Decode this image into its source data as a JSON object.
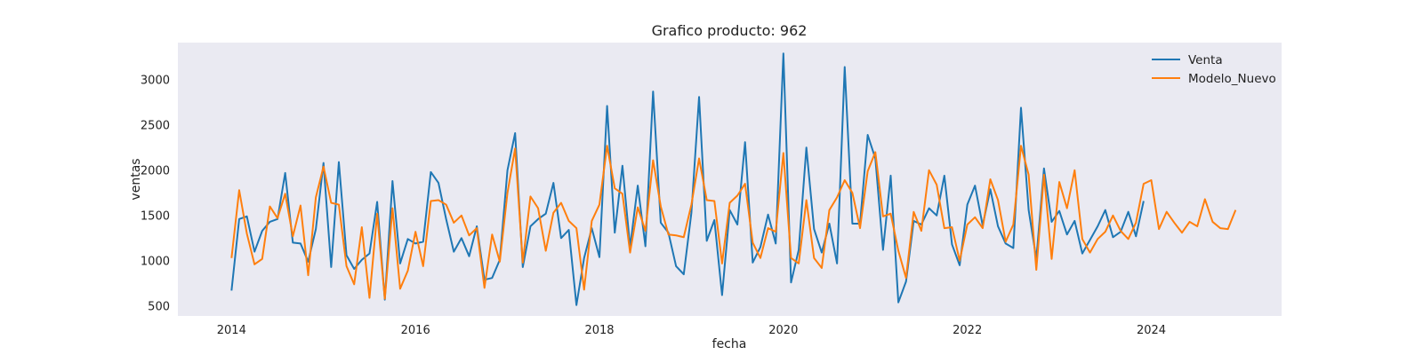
{
  "chart_data": {
    "type": "line",
    "title": "Grafico producto: 962",
    "xlabel": "fecha",
    "ylabel": "ventas",
    "x_start": "2014-01",
    "x_ticks": [
      "2014",
      "2016",
      "2018",
      "2020",
      "2022",
      "2024"
    ],
    "y_ticks": [
      500,
      1000,
      1500,
      2000,
      2500,
      3000
    ],
    "xlim": [
      "2013-06",
      "2025-06"
    ],
    "ylim": [
      390,
      3410
    ],
    "grid": false,
    "legend_position": "top-right",
    "plot_background": "#eaeaf2",
    "series": [
      {
        "name": "Venta",
        "color": "#1f77b4",
        "values": [
          670,
          1460,
          1490,
          1100,
          1330,
          1430,
          1460,
          1970,
          1200,
          1190,
          990,
          1350,
          2080,
          930,
          2090,
          1060,
          910,
          1010,
          1080,
          1650,
          570,
          1880,
          970,
          1240,
          1190,
          1210,
          1980,
          1860,
          1460,
          1100,
          1250,
          1050,
          1380,
          790,
          810,
          1010,
          2000,
          2410,
          930,
          1380,
          1460,
          1520,
          1860,
          1250,
          1340,
          510,
          1030,
          1360,
          1040,
          2710,
          1310,
          2050,
          1150,
          1830,
          1160,
          2870,
          1420,
          1310,
          940,
          850,
          1530,
          2810,
          1220,
          1450,
          620,
          1560,
          1400,
          2310,
          980,
          1150,
          1510,
          1190,
          3290,
          760,
          1120,
          2250,
          1350,
          1090,
          1410,
          970,
          3140,
          1410,
          1410,
          2390,
          2130,
          1120,
          1940,
          540,
          770,
          1440,
          1400,
          1580,
          1500,
          1940,
          1180,
          950,
          1620,
          1830,
          1390,
          1790,
          1380,
          1190,
          1140,
          2690,
          1560,
          1020,
          2020,
          1430,
          1550,
          1290,
          1440,
          1080,
          1230,
          1380,
          1560,
          1260,
          1320,
          1540,
          1270,
          1660
        ]
      },
      {
        "name": "Modelo_Nuevo",
        "color": "#ff7f0e",
        "values": [
          1030,
          1780,
          1300,
          960,
          1020,
          1600,
          1470,
          1740,
          1270,
          1610,
          840,
          1700,
          2040,
          1640,
          1620,
          940,
          740,
          1370,
          590,
          1520,
          580,
          1580,
          690,
          890,
          1320,
          940,
          1660,
          1670,
          1620,
          1420,
          1500,
          1280,
          1360,
          700,
          1290,
          990,
          1750,
          2240,
          980,
          1710,
          1580,
          1110,
          1530,
          1640,
          1440,
          1360,
          680,
          1440,
          1620,
          2270,
          1800,
          1740,
          1090,
          1590,
          1330,
          2110,
          1600,
          1290,
          1280,
          1260,
          1620,
          2130,
          1670,
          1660,
          970,
          1640,
          1720,
          1850,
          1200,
          1030,
          1360,
          1320,
          2190,
          1030,
          970,
          1670,
          1030,
          920,
          1560,
          1700,
          1890,
          1750,
          1360,
          1990,
          2200,
          1490,
          1520,
          1110,
          810,
          1540,
          1330,
          2000,
          1840,
          1360,
          1370,
          1000,
          1400,
          1480,
          1360,
          1900,
          1670,
          1210,
          1400,
          2270,
          1950,
          900,
          1950,
          1020,
          1870,
          1580,
          2000,
          1240,
          1090,
          1240,
          1320,
          1500,
          1330,
          1240,
          1420,
          1850,
          1890,
          1350,
          1540,
          1420,
          1310,
          1430,
          1380,
          1680,
          1430,
          1360,
          1350,
          1560
        ]
      }
    ]
  }
}
